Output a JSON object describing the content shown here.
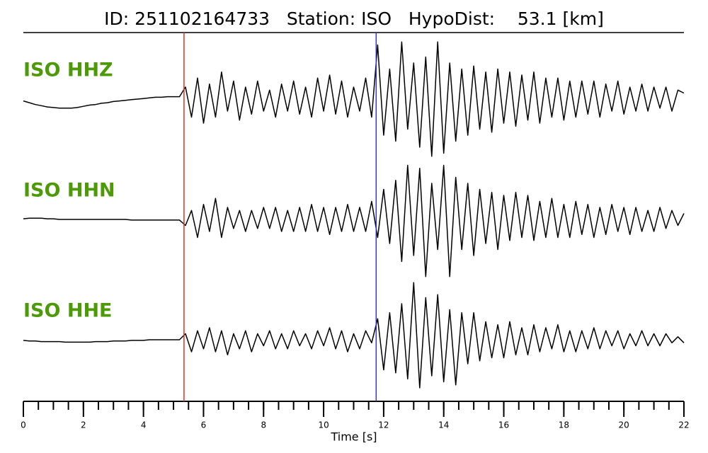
{
  "chart_data": {
    "type": "line",
    "title": "ID: 251102164733   Station: ISO   HypoDist:    53.1 [km]",
    "xlabel": "Time [s]",
    "xlim": [
      0,
      22
    ],
    "xticks": [
      0,
      2,
      4,
      6,
      8,
      10,
      12,
      14,
      16,
      18,
      20,
      22
    ],
    "xminor": 0.5,
    "ylim": [
      -1,
      1
    ],
    "label_color": "#4c9a06",
    "markers": [
      {
        "x": 5.35,
        "color": "#e0302a"
      },
      {
        "x": 11.75,
        "color": "#3a3aa8"
      }
    ],
    "x": [
      0,
      0.2,
      0.4,
      0.6,
      0.8,
      1,
      1.2,
      1.4,
      1.6,
      1.8,
      2,
      2.2,
      2.4,
      2.6,
      2.8,
      3,
      3.2,
      3.4,
      3.6,
      3.8,
      4,
      4.2,
      4.4,
      4.6,
      4.8,
      5,
      5.2,
      5.4,
      5.6,
      5.8,
      6,
      6.2,
      6.4,
      6.6,
      6.8,
      7,
      7.2,
      7.4,
      7.6,
      7.8,
      8,
      8.2,
      8.4,
      8.6,
      8.8,
      9,
      9.2,
      9.4,
      9.6,
      9.8,
      10,
      10.2,
      10.4,
      10.6,
      10.8,
      11,
      11.2,
      11.4,
      11.6,
      11.8,
      12,
      12.2,
      12.4,
      12.6,
      12.8,
      13,
      13.2,
      13.4,
      13.6,
      13.8,
      14,
      14.2,
      14.4,
      14.6,
      14.8,
      15,
      15.2,
      15.4,
      15.6,
      15.8,
      16,
      16.2,
      16.4,
      16.6,
      16.8,
      17,
      17.2,
      17.4,
      17.6,
      17.8,
      18,
      18.2,
      18.4,
      18.6,
      18.8,
      19,
      19.2,
      19.4,
      19.6,
      19.8,
      20,
      20.2,
      20.4,
      20.6,
      20.8,
      21,
      21.2,
      21.4,
      21.6,
      21.8,
      22
    ],
    "series": [
      {
        "name": "ISO HHZ",
        "color": "#000000",
        "values": [
          -0.03,
          -0.06,
          -0.09,
          -0.11,
          -0.13,
          -0.14,
          -0.15,
          -0.15,
          -0.15,
          -0.14,
          -0.12,
          -0.1,
          -0.09,
          -0.07,
          -0.06,
          -0.04,
          -0.03,
          -0.02,
          -0.01,
          0,
          0.01,
          0.02,
          0.03,
          0.03,
          0.04,
          0.04,
          0.04,
          0.2,
          -0.3,
          0.35,
          -0.4,
          0.25,
          -0.3,
          0.45,
          -0.2,
          0.3,
          -0.35,
          0.2,
          -0.25,
          0.3,
          -0.2,
          0.15,
          -0.3,
          0.25,
          -0.2,
          0.3,
          -0.25,
          0.2,
          -0.3,
          0.35,
          -0.2,
          0.4,
          -0.25,
          0.3,
          -0.3,
          0.2,
          -0.2,
          0.35,
          -0.3,
          0.9,
          -0.6,
          0.5,
          -0.7,
          0.95,
          -0.5,
          0.6,
          -0.8,
          0.7,
          -0.95,
          0.95,
          -0.9,
          0.6,
          -0.7,
          0.5,
          -0.6,
          0.55,
          -0.5,
          0.45,
          -0.55,
          0.5,
          -0.4,
          0.45,
          -0.45,
          0.4,
          -0.35,
          0.45,
          -0.4,
          0.35,
          -0.3,
          0.35,
          -0.35,
          0.3,
          -0.3,
          0.3,
          -0.25,
          0.3,
          -0.3,
          0.25,
          -0.2,
          0.3,
          -0.25,
          0.2,
          -0.2,
          0.25,
          -0.2,
          0.2,
          -0.15,
          0.2,
          -0.2,
          0.15,
          0.1
        ]
      },
      {
        "name": "ISO HHN",
        "color": "#000000",
        "values": [
          0.01,
          0.02,
          0.02,
          0.02,
          0.01,
          0.01,
          0,
          0,
          0,
          0,
          0,
          0,
          0,
          0,
          0,
          0,
          0,
          0,
          -0.01,
          -0.01,
          -0.01,
          -0.01,
          -0.01,
          -0.01,
          -0.01,
          -0.01,
          -0.01,
          -0.1,
          0.15,
          -0.3,
          0.25,
          -0.2,
          0.35,
          -0.3,
          0.2,
          -0.15,
          0.15,
          -0.2,
          0.15,
          -0.15,
          0.2,
          -0.15,
          0.2,
          -0.2,
          0.15,
          -0.2,
          0.2,
          -0.2,
          0.25,
          -0.2,
          0.2,
          -0.25,
          0.2,
          -0.2,
          0.25,
          -0.2,
          0.2,
          -0.2,
          0.3,
          -0.3,
          0.5,
          -0.4,
          0.65,
          -0.7,
          0.9,
          -0.6,
          0.85,
          -0.95,
          0.6,
          -0.5,
          0.9,
          -0.95,
          0.7,
          -0.5,
          0.6,
          -0.6,
          0.5,
          -0.4,
          0.45,
          -0.5,
          0.4,
          -0.35,
          0.45,
          -0.3,
          0.4,
          -0.35,
          0.3,
          -0.3,
          0.35,
          -0.3,
          0.25,
          -0.3,
          0.3,
          -0.25,
          0.25,
          -0.3,
          0.2,
          -0.25,
          0.25,
          -0.2,
          0.2,
          -0.25,
          0.2,
          -0.2,
          0.15,
          -0.2,
          0.2,
          -0.15,
          0.15,
          -0.1,
          0.1
        ]
      },
      {
        "name": "ISO HHE",
        "color": "#000000",
        "values": [
          -0.01,
          -0.02,
          -0.02,
          -0.03,
          -0.03,
          -0.03,
          -0.03,
          -0.04,
          -0.04,
          -0.04,
          -0.04,
          -0.04,
          -0.03,
          -0.03,
          -0.03,
          -0.02,
          -0.02,
          -0.02,
          -0.01,
          -0.01,
          -0.01,
          0,
          0,
          0,
          0,
          0,
          0,
          0.1,
          -0.2,
          0.15,
          -0.15,
          0.2,
          -0.2,
          0.15,
          -0.25,
          0.1,
          -0.15,
          0.15,
          -0.2,
          0.1,
          -0.1,
          0.15,
          -0.15,
          0.1,
          -0.15,
          0.15,
          -0.1,
          0.1,
          -0.15,
          0.15,
          -0.1,
          0.2,
          -0.15,
          0.15,
          -0.2,
          0.1,
          -0.15,
          0.15,
          -0.05,
          0.35,
          -0.5,
          0.45,
          -0.55,
          0.6,
          -0.65,
          0.95,
          -0.8,
          0.7,
          -0.6,
          0.75,
          -0.7,
          0.5,
          -0.75,
          0.45,
          -0.4,
          0.45,
          -0.35,
          0.3,
          -0.3,
          0.25,
          -0.3,
          0.3,
          -0.25,
          0.2,
          -0.25,
          0.25,
          -0.2,
          0.2,
          -0.15,
          0.25,
          -0.2,
          0.15,
          -0.2,
          0.15,
          -0.15,
          0.2,
          -0.15,
          0.15,
          -0.1,
          0.15,
          -0.15,
          0.1,
          -0.1,
          0.15,
          -0.1,
          0.1,
          -0.1,
          0.1,
          -0.05,
          0.05,
          -0.05
        ]
      }
    ]
  }
}
